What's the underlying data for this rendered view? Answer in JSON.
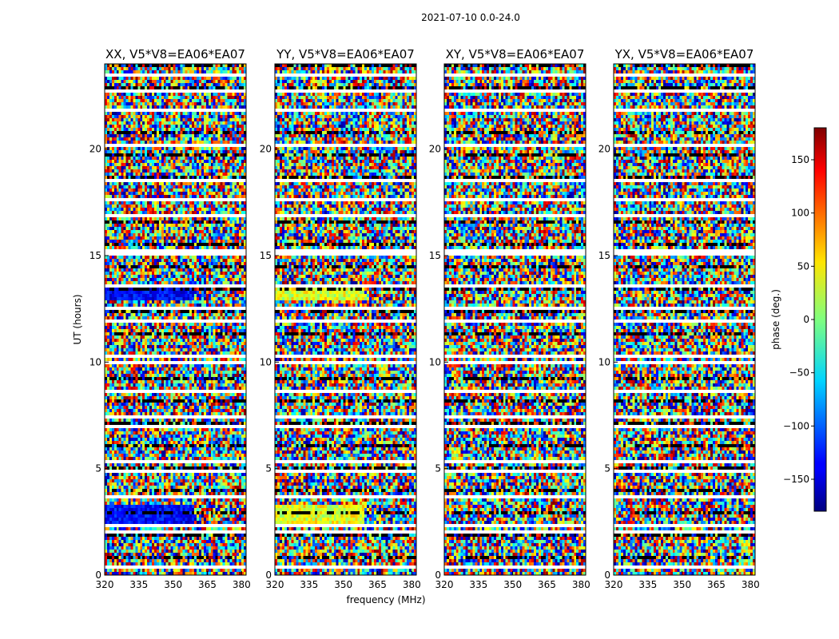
{
  "figure_title": "2021-07-10 0.0-24.0",
  "colorbar": {
    "label": "phase (deg.)",
    "ticks": [
      150,
      100,
      50,
      0,
      -50,
      -100,
      -150
    ],
    "range": [
      -180,
      180
    ]
  },
  "chart_data": {
    "type": "heatmap",
    "xlabel": "frequency (MHz)",
    "ylabel": "UT (hours)",
    "xlim": [
      320,
      382
    ],
    "ylim": [
      0,
      24
    ],
    "xticks": [
      320,
      335,
      350,
      365,
      380
    ],
    "yticks": [
      0,
      5,
      10,
      15,
      20
    ],
    "value_label": "phase (deg.)",
    "value_range": [
      -180,
      180
    ],
    "panels": [
      {
        "title": "XX, V5*V8=EA06*EA07"
      },
      {
        "title": "YY, V5*V8=EA06*EA07"
      },
      {
        "title": "XY, V5*V8=EA06*EA07"
      },
      {
        "title": "YX, V5*V8=EA06*EA07"
      }
    ]
  }
}
